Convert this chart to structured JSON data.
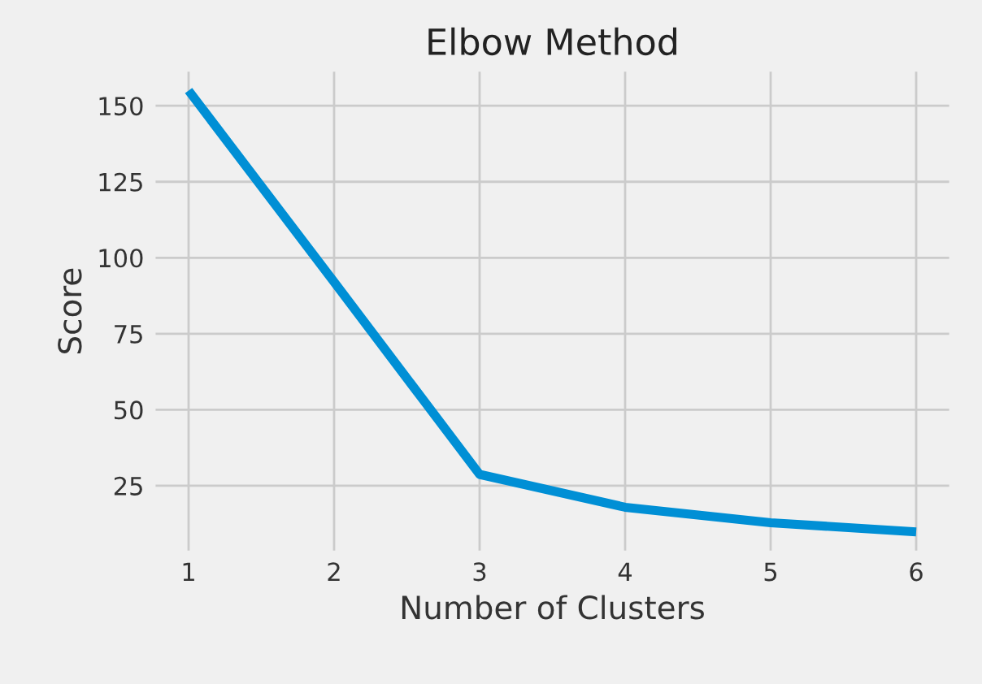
{
  "chart_data": {
    "type": "line",
    "title": "Elbow Method",
    "xlabel": "Number of Clusters",
    "ylabel": "Score",
    "x": [
      1,
      2,
      3,
      4,
      5,
      6
    ],
    "series": [
      {
        "color": "#008fd5",
        "values": [
          155,
          92,
          28.7,
          17.9,
          12.8,
          9.8
        ]
      }
    ],
    "xlim": [
      0.75,
      6.25
    ],
    "xticks": [
      1,
      2,
      3,
      4,
      5,
      6
    ],
    "ylim": [
      2.5,
      162.3
    ],
    "yticks": [
      25,
      50,
      75,
      100,
      125,
      150
    ],
    "grid": true,
    "marker": "none",
    "line_style": "solid"
  }
}
